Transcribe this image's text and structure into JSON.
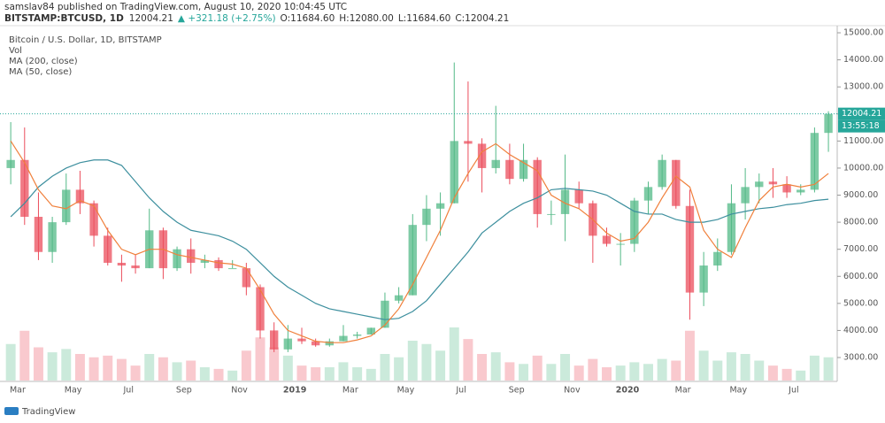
{
  "header": {
    "publisher": "samslav84 published on TradingView.com, August 10, 2020 10:04:45 UTC",
    "symbol": "BITSTAMP:BTCUSD, 1D",
    "last": "12004.21",
    "change": "▲ +321.18 (+2.75%)",
    "open": "O:11684.60",
    "high": "H:12080.00",
    "low": "L:11684.60",
    "close": "C:12004.21"
  },
  "legend": [
    "Bitcoin / U.S. Dollar, 1D, BITSTAMP",
    "Vol",
    "MA (200, close)",
    "MA (50, close)"
  ],
  "footer": "TradingView",
  "chart_data": {
    "type": "candlestick",
    "categories": [
      null,
      "Mar",
      null,
      null,
      null,
      "May",
      null,
      null,
      null,
      "Jul",
      null,
      null,
      null,
      "Sep",
      null,
      null,
      null,
      "Nov",
      null,
      null,
      null,
      "2019",
      null,
      null,
      null,
      "Mar",
      null,
      null,
      null,
      "May",
      null,
      null,
      null,
      "Jul",
      null,
      null,
      null,
      "Sep",
      null,
      null,
      null,
      "Nov",
      null,
      null,
      null,
      "2020",
      null,
      null,
      null,
      "Mar",
      null,
      null,
      null,
      "May",
      null,
      null,
      null,
      "Jul",
      null,
      null
    ],
    "open": [
      10000,
      10300,
      8200,
      6900,
      8000,
      9200,
      8700,
      7500,
      6500,
      6400,
      6300,
      7700,
      6300,
      7000,
      6500,
      6600,
      6300,
      6300,
      5600,
      4000,
      3300,
      3700,
      3600,
      3450,
      3600,
      3800,
      3850,
      4100,
      5100,
      5300,
      7900,
      8500,
      8700,
      11000,
      10900,
      10000,
      10300,
      9600,
      10300,
      8300,
      8300,
      9200,
      8700,
      7500,
      7200,
      7200,
      8800,
      9300,
      10300,
      8600,
      5400,
      6400,
      6900,
      8700,
      9300,
      9500,
      9400,
      9100,
      9200,
      11300
    ],
    "high": [
      11700,
      11500,
      9100,
      8200,
      9800,
      9900,
      8800,
      7800,
      6800,
      6800,
      8500,
      7800,
      7100,
      7400,
      6800,
      6700,
      6600,
      6500,
      5700,
      4300,
      4200,
      4100,
      3700,
      3700,
      4200,
      3950,
      4100,
      5400,
      5600,
      8300,
      9000,
      9100,
      13900,
      13200,
      11100,
      12300,
      10900,
      10900,
      10400,
      8800,
      10500,
      9500,
      8800,
      7800,
      7600,
      8900,
      9500,
      10500,
      10300,
      9200,
      6900,
      7400,
      9400,
      10000,
      9800,
      10000,
      9700,
      9400,
      11500,
      12100
    ],
    "low": [
      9400,
      7900,
      6600,
      6500,
      7900,
      8300,
      7100,
      6400,
      5800,
      6100,
      6300,
      5900,
      6200,
      6100,
      6300,
      6200,
      6300,
      5300,
      3700,
      3200,
      3200,
      3500,
      3400,
      3400,
      3600,
      3700,
      3850,
      4100,
      5000,
      5300,
      7300,
      7500,
      8700,
      9500,
      9100,
      9800,
      9400,
      9500,
      7800,
      7900,
      7300,
      8500,
      6500,
      7100,
      6400,
      6900,
      8300,
      9200,
      8500,
      4400,
      4900,
      6200,
      6800,
      8100,
      8700,
      8900,
      8900,
      9000,
      9100,
      10600
    ],
    "close": [
      10300,
      8200,
      6900,
      8000,
      9200,
      8700,
      7500,
      6500,
      6400,
      6300,
      7700,
      6300,
      7000,
      6500,
      6600,
      6300,
      6300,
      5600,
      4000,
      3300,
      3700,
      3600,
      3450,
      3600,
      3800,
      3850,
      4100,
      5100,
      5300,
      7900,
      8500,
      8700,
      11000,
      10900,
      10000,
      10300,
      9600,
      10300,
      8300,
      8300,
      9200,
      8700,
      7500,
      7200,
      7200,
      8800,
      9300,
      10300,
      8600,
      5400,
      6400,
      6900,
      8700,
      9300,
      9500,
      9400,
      9100,
      9200,
      11300,
      12004.21
    ],
    "volume": [
      22000,
      30000,
      20000,
      17000,
      19000,
      16000,
      14000,
      15000,
      13000,
      9000,
      16000,
      14000,
      11000,
      12000,
      8000,
      7000,
      6000,
      18000,
      26000,
      20000,
      15000,
      9000,
      8000,
      8000,
      11000,
      8000,
      7000,
      16000,
      14000,
      24000,
      22000,
      18000,
      32000,
      25000,
      16000,
      17000,
      11000,
      10000,
      15000,
      10000,
      16000,
      9000,
      13000,
      8000,
      9000,
      11000,
      10000,
      13000,
      12000,
      30000,
      18000,
      12000,
      17000,
      16000,
      12000,
      9000,
      7000,
      6000,
      15000,
      14000
    ],
    "series": [
      {
        "name": "MA (200, close)",
        "color": "#3d8f9e",
        "values": [
          8200,
          8700,
          9300,
          9700,
          10000,
          10200,
          10300,
          10300,
          10100,
          9500,
          8900,
          8400,
          8000,
          7700,
          7600,
          7500,
          7300,
          7000,
          6500,
          6000,
          5600,
          5300,
          5000,
          4800,
          4700,
          4600,
          4500,
          4400,
          4450,
          4700,
          5100,
          5700,
          6300,
          6900,
          7600,
          8000,
          8400,
          8700,
          8900,
          9200,
          9250,
          9200,
          9150,
          9000,
          8700,
          8400,
          8300,
          8300,
          8100,
          8000,
          8000,
          8100,
          8300,
          8400,
          8500,
          8550,
          8650,
          8700,
          8800,
          8850
        ]
      },
      {
        "name": "MA (50, close)",
        "color": "#f0803c",
        "values": [
          11000,
          10200,
          9200,
          8600,
          8500,
          8800,
          8600,
          7700,
          7000,
          6800,
          7000,
          7000,
          6800,
          6700,
          6600,
          6500,
          6450,
          6300,
          5500,
          4600,
          4000,
          3800,
          3600,
          3550,
          3550,
          3650,
          3800,
          4200,
          4800,
          5700,
          6700,
          7700,
          8900,
          9800,
          10600,
          10900,
          10500,
          10200,
          9900,
          9000,
          8700,
          8500,
          8100,
          7600,
          7300,
          7400,
          8000,
          8900,
          9700,
          9300,
          7700,
          7000,
          6700,
          7800,
          8800,
          9300,
          9400,
          9300,
          9400,
          9800
        ]
      }
    ],
    "up_color": "#53b987",
    "down_color": "#eb4d5c",
    "last_price": 12004.21,
    "timer": "13:55:18",
    "ylim": [
      2150,
      15230
    ],
    "yticks": [
      {
        "value": 3000,
        "label": "3000.00"
      },
      {
        "value": 4000,
        "label": "4000.00"
      },
      {
        "value": 5000,
        "label": "5000.00"
      },
      {
        "value": 6000,
        "label": "6000.00"
      },
      {
        "value": 7000,
        "label": "7000.00"
      },
      {
        "value": 8000,
        "label": "8000.00"
      },
      {
        "value": 9000,
        "label": "9000.00"
      },
      {
        "value": 10000,
        "label": "10000.00"
      },
      {
        "value": 11000,
        "label": "11000.00"
      },
      {
        "value": 12000,
        "label": "12000.00"
      },
      {
        "value": 13000,
        "label": "13000.00"
      },
      {
        "value": 14000,
        "label": "14000.00"
      },
      {
        "value": 15000,
        "label": "15000.00"
      }
    ]
  }
}
